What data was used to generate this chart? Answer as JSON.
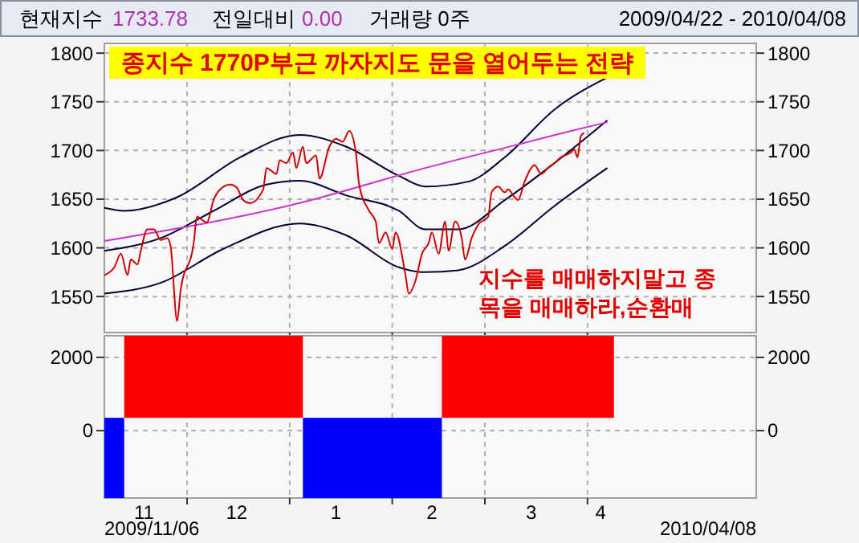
{
  "chart_data": [
    {
      "type": "line",
      "title": "종지수 1770P부근 까자지도 문을 열어두는 전략",
      "annotations": [
        "현재지수",
        "1733.78",
        "전일대비",
        "0.00",
        "거래량 0주",
        "2009/04/22 - 2010/04/08",
        "지수를 매매하지말고 종목을 매매하라,순환매"
      ],
      "xlim": [
        "2009-11-06",
        "2010-05-22"
      ],
      "xticks": [
        {
          "value": "2009-12-01",
          "label": null
        },
        {
          "value": "2010-01-01",
          "label": null
        },
        {
          "value": "2010-02-01",
          "label": null
        },
        {
          "value": "2010-03-01",
          "label": null
        },
        {
          "value": "2010-04-01",
          "label": null
        }
      ],
      "ylim": [
        1513,
        1810
      ],
      "yticks": [
        1550,
        1600,
        1650,
        1700,
        1750,
        1800
      ],
      "y2lim": [
        1513,
        1810
      ],
      "y2ticks": [
        1550,
        1600,
        1650,
        1700,
        1750,
        1800
      ],
      "tick_labels": "y",
      "grid": true,
      "series": [
        {
          "color": "#000033",
          "x": [
            "2009-11-06",
            "2009-11-12",
            "2009-11-28",
            "2009-12-17",
            "2010-01-04",
            "2010-01-18",
            "2010-02-03",
            "2010-02-11",
            "2010-02-24",
            "2010-03-07",
            "2010-03-22",
            "2010-04-07"
          ],
          "values": [
            1641,
            1638,
            1652,
            1693,
            1716,
            1704,
            1674,
            1663,
            1668,
            1693,
            1742,
            1775
          ]
        },
        {
          "color": "#000033",
          "x": [
            "2009-11-06",
            "2009-11-23",
            "2009-12-09",
            "2009-12-25",
            "2010-01-04",
            "2010-01-18",
            "2010-02-03",
            "2010-02-11",
            "2010-02-21",
            "2010-03-07",
            "2010-03-22",
            "2010-04-07"
          ],
          "values": [
            1597,
            1610,
            1638,
            1665,
            1669,
            1654,
            1638,
            1619,
            1619,
            1649,
            1687,
            1731
          ]
        },
        {
          "color": "#000033",
          "x": [
            "2009-11-06",
            "2009-11-23",
            "2009-12-12",
            "2010-01-04",
            "2010-01-18",
            "2010-02-03",
            "2010-02-11",
            "2010-02-21",
            "2010-03-07",
            "2010-03-22",
            "2010-04-07"
          ],
          "values": [
            1553,
            1564,
            1599,
            1625,
            1613,
            1580,
            1575,
            1577,
            1602,
            1643,
            1682
          ]
        },
        {
          "color": "#cc33cc",
          "x": [
            "2009-11-06",
            "2010-01-04",
            "2010-02-11",
            "2010-03-12",
            "2010-03-27",
            "2010-04-07"
          ],
          "values": [
            1607,
            1646,
            1682,
            1707,
            1720,
            1729
          ]
        },
        {
          "color": "#cc0000",
          "x": [
            "2009-11-06",
            "2009-11-09",
            "2009-11-11",
            "2009-11-13",
            "2009-11-14",
            "2009-11-16",
            "2009-11-17",
            "2009-11-19",
            "2009-11-21",
            "2009-11-23",
            "2009-11-25",
            "2009-11-26",
            "2009-11-28",
            "2009-11-29",
            "2009-12-03",
            "2009-12-04",
            "2009-12-07",
            "2009-12-09",
            "2009-12-11",
            "2009-12-14",
            "2009-12-16",
            "2009-12-18",
            "2009-12-20",
            "2009-12-24",
            "2009-12-25",
            "2009-12-28",
            "2009-12-29",
            "2009-12-31",
            "2010-01-02",
            "2010-01-03",
            "2010-01-05",
            "2010-01-06",
            "2010-01-09",
            "2010-01-10",
            "2010-01-13",
            "2010-01-15",
            "2010-01-17",
            "2010-01-19",
            "2010-01-21",
            "2010-01-22",
            "2010-01-25",
            "2010-01-27",
            "2010-01-28",
            "2010-01-30",
            "2010-02-01",
            "2010-02-02",
            "2010-02-05",
            "2010-02-06",
            "2010-02-08",
            "2010-02-10",
            "2010-02-12",
            "2010-02-13",
            "2010-02-15",
            "2010-02-17",
            "2010-02-18",
            "2010-02-20",
            "2010-02-22",
            "2010-02-23",
            "2010-02-25",
            "2010-02-27",
            "2010-03-02",
            "2010-03-03",
            "2010-03-05",
            "2010-03-07",
            "2010-03-08",
            "2010-03-10",
            "2010-03-11",
            "2010-03-13",
            "2010-03-15",
            "2010-03-16",
            "2010-03-18",
            "2010-03-20",
            "2010-03-22",
            "2010-03-24",
            "2010-03-27",
            "2010-03-28",
            "2010-03-29",
            "2010-03-30",
            "2010-03-31"
          ],
          "values": [
            1572,
            1580,
            1594,
            1572,
            1588,
            1583,
            1597,
            1619,
            1619,
            1608,
            1610,
            1602,
            1525,
            1555,
            1605,
            1632,
            1626,
            1649,
            1660,
            1665,
            1662,
            1649,
            1646,
            1660,
            1682,
            1676,
            1690,
            1687,
            1698,
            1682,
            1704,
            1687,
            1695,
            1671,
            1704,
            1712,
            1709,
            1720,
            1698,
            1665,
            1638,
            1627,
            1605,
            1616,
            1599,
            1616,
            1572,
            1553,
            1566,
            1594,
            1605,
            1616,
            1594,
            1627,
            1597,
            1627,
            1610,
            1588,
            1610,
            1624,
            1632,
            1657,
            1663,
            1657,
            1660,
            1652,
            1649,
            1668,
            1682,
            1685,
            1676,
            1682,
            1687,
            1693,
            1698,
            1701,
            1693,
            1715,
            1718
          ]
        }
      ]
    },
    {
      "type": "bar",
      "annotations": [
        "2009/11/06",
        "2010/04/08"
      ],
      "xlim": [
        "2009-11-06",
        "2010-05-22"
      ],
      "xticks": [
        {
          "value": "2009-11-18",
          "label": "11"
        },
        {
          "value": "2009-12-01",
          "label": null
        },
        {
          "value": "2009-12-16",
          "label": "12"
        },
        {
          "value": "2010-01-01",
          "label": null
        },
        {
          "value": "2010-01-15",
          "label": "1"
        },
        {
          "value": "2010-02-01",
          "label": null
        },
        {
          "value": "2010-02-13",
          "label": "2"
        },
        {
          "value": "2010-03-01",
          "label": null
        },
        {
          "value": "2010-03-15",
          "label": "3"
        },
        {
          "value": "2010-04-01",
          "label": null
        },
        {
          "value": "2010-04-05",
          "label": "4"
        }
      ],
      "ylim": [
        -1840,
        2590
      ],
      "yticks": [
        0,
        2000
      ],
      "y2lim": [
        -1840,
        2590
      ],
      "y2ticks": [
        0,
        2000
      ],
      "grid": true,
      "x": [
        "2009-11-09",
        "2009-12-09",
        "2010-01-26",
        "2010-03-14"
      ],
      "base": [
        350,
        350,
        350,
        350
      ],
      "values": [
        -2190,
        2240,
        -2190,
        2240
      ],
      "colors": [
        "#0000ff",
        "#ff0000",
        "#0000ff",
        "#ff0000"
      ]
    }
  ]
}
